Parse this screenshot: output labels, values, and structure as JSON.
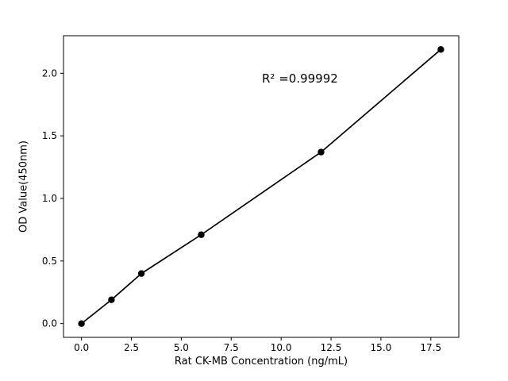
{
  "figure": {
    "background": "#ffffff"
  },
  "chart_data": {
    "type": "scatter",
    "title": "",
    "xlabel": "Rat CK-MB Concentration (ng/mL)",
    "ylabel": "OD Value(450nm)",
    "annotation": "R² =0.99992",
    "x": [
      0,
      1.5,
      3,
      6,
      12,
      18
    ],
    "y": [
      0.0,
      0.19,
      0.4,
      0.71,
      1.37,
      2.19
    ],
    "xlim": [
      -0.9,
      18.9
    ],
    "ylim": [
      -0.11,
      2.3
    ],
    "xticks": [
      0.0,
      2.5,
      5.0,
      7.5,
      10.0,
      12.5,
      15.0,
      17.5
    ],
    "xtick_labels": [
      "0.0",
      "2.5",
      "5.0",
      "7.5",
      "10.0",
      "12.5",
      "15.0",
      "17.5"
    ],
    "yticks": [
      0.0,
      0.5,
      1.0,
      1.5,
      2.0
    ],
    "ytick_labels": [
      "0.0",
      "0.5",
      "1.0",
      "1.5",
      "2.0"
    ],
    "marker_color": "#000000",
    "line_color": "#000000",
    "spine_color": "#000000",
    "grid": false,
    "legend": null
  }
}
